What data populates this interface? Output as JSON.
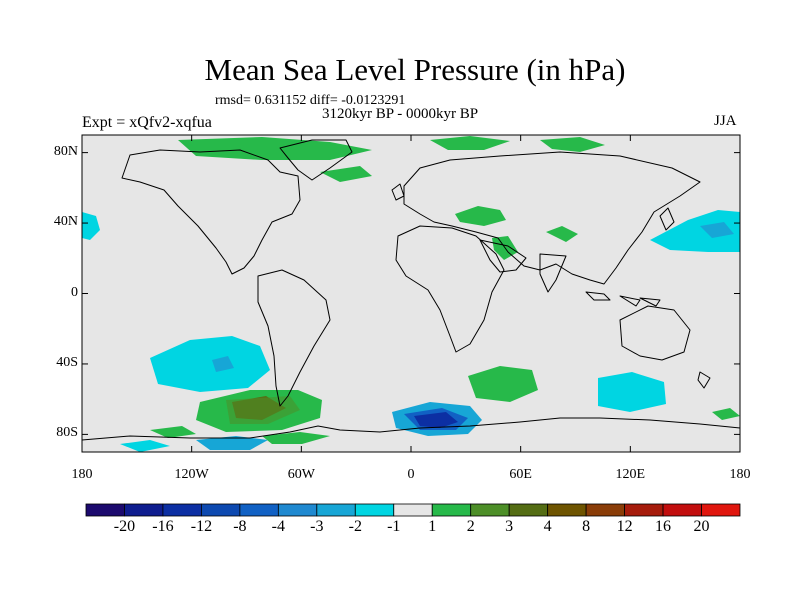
{
  "title": "Mean Sea Level Pressure (in hPa)",
  "stats": "rmsd= 0.631152  diff= -0.0123291",
  "period": "3120kyr BP - 0000kyr BP",
  "experiment": "Expt = xQfv2-xqfua",
  "season": "JJA",
  "axes": {
    "lat_ticks": [
      "80N",
      "40N",
      "0",
      "40S",
      "80S"
    ],
    "lat_values": [
      80,
      40,
      0,
      -40,
      -80
    ],
    "lon_ticks": [
      "180",
      "120W",
      "60W",
      "0",
      "60E",
      "120E",
      "180"
    ],
    "lon_values": [
      -180,
      -120,
      -60,
      0,
      60,
      120,
      180
    ]
  },
  "colors": {
    "ocean_background": "#e6e6e6",
    "coastline": "#000000",
    "neutral": "#e6e6e6"
  },
  "colorbar": {
    "labels": [
      "-20",
      "-16",
      "-12",
      "-8",
      "-4",
      "-3",
      "-2",
      "-1",
      "1",
      "2",
      "3",
      "4",
      "8",
      "12",
      "16",
      "20"
    ],
    "colors": [
      "#1c0a6e",
      "#0f1d8f",
      "#0c2fa3",
      "#0d49b0",
      "#1161c4",
      "#1f89d0",
      "#17a6d6",
      "#00d5e2",
      "#e6e6e6",
      "#27b94a",
      "#4d8f28",
      "#546d14",
      "#6e5400",
      "#8a3d08",
      "#a61c0c",
      "#c20e0e",
      "#e0160e"
    ]
  }
}
